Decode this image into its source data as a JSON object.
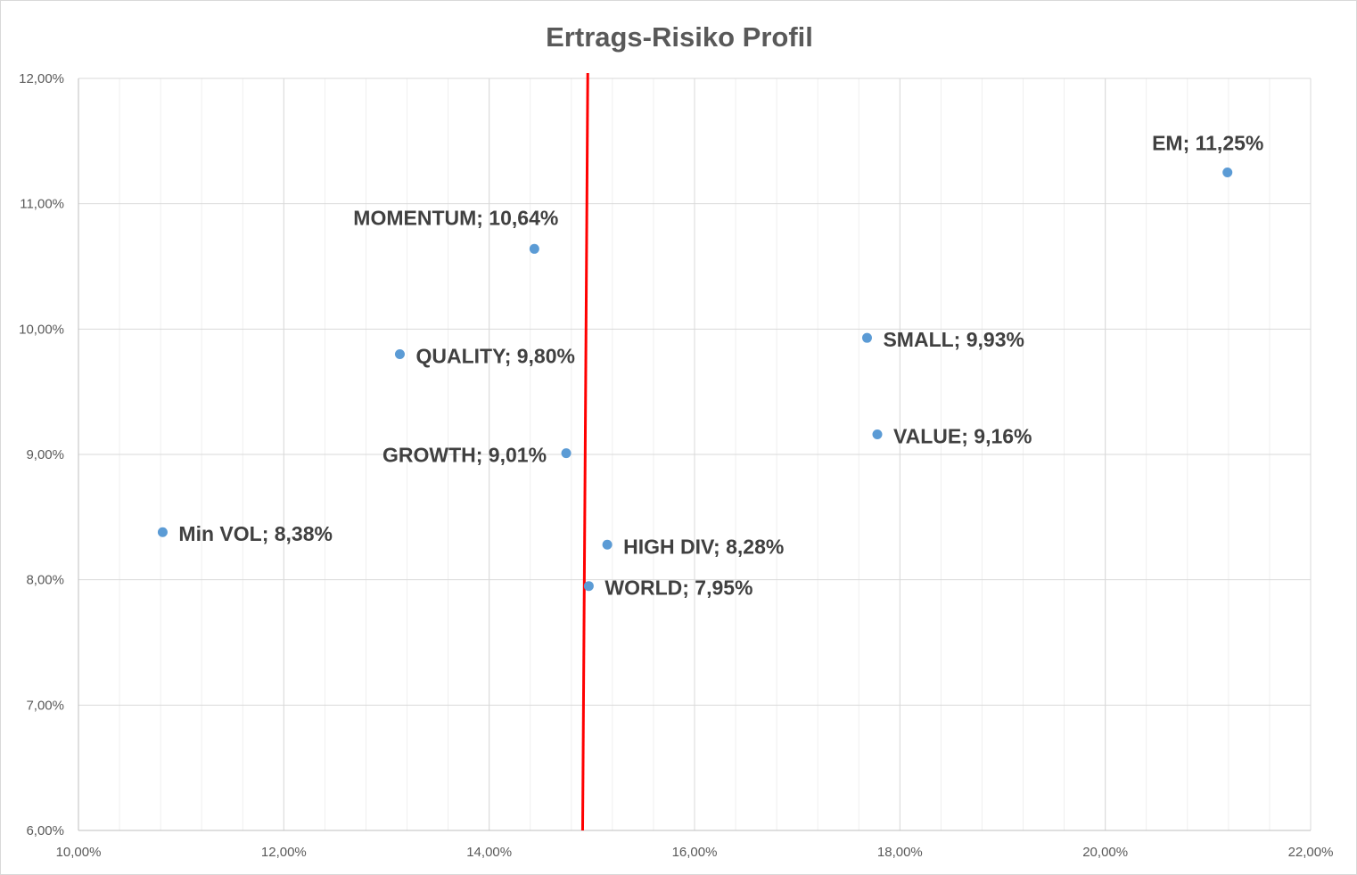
{
  "chart_data": {
    "type": "scatter",
    "title": "Ertrags-Risiko Profil",
    "xlabel": "",
    "ylabel": "",
    "xlim": [
      10,
      22
    ],
    "ylim": [
      6,
      12
    ],
    "x_major_step": 2,
    "x_minor_step": 0.4,
    "y_major_step": 1,
    "grid": true,
    "x_tick_labels": [
      "10,00%",
      "12,00%",
      "14,00%",
      "16,00%",
      "18,00%",
      "20,00%",
      "22,00%"
    ],
    "y_tick_labels": [
      "6,00%",
      "7,00%",
      "8,00%",
      "9,00%",
      "10,00%",
      "11,00%",
      "12,00%"
    ],
    "marker_color": "#5b9bd5",
    "points": [
      {
        "name": "EM",
        "x": 21.19,
        "y": 11.25,
        "label": "EM; 11,25%",
        "label_position": "above"
      },
      {
        "name": "MOMENTUM",
        "x": 14.44,
        "y": 10.64,
        "label": "MOMENTUM; 10,64%",
        "label_position": "above-left"
      },
      {
        "name": "SMALL",
        "x": 17.68,
        "y": 9.93,
        "label": "SMALL; 9,93%",
        "label_position": "right"
      },
      {
        "name": "QUALITY",
        "x": 13.13,
        "y": 9.8,
        "label": "QUALITY; 9,80%",
        "label_position": "right"
      },
      {
        "name": "VALUE",
        "x": 17.78,
        "y": 9.16,
        "label": "VALUE; 9,16%",
        "label_position": "right"
      },
      {
        "name": "GROWTH",
        "x": 14.75,
        "y": 9.01,
        "label": "GROWTH; 9,01%",
        "label_position": "left"
      },
      {
        "name": "Min VOL",
        "x": 10.82,
        "y": 8.38,
        "label": "Min VOL; 8,38%",
        "label_position": "right"
      },
      {
        "name": "HIGH DIV",
        "x": 15.15,
        "y": 8.28,
        "label": "HIGH DIV; 8,28%",
        "label_position": "right"
      },
      {
        "name": "WORLD",
        "x": 14.97,
        "y": 7.95,
        "label": "WORLD; 7,95%",
        "label_position": "right"
      }
    ],
    "reference_line": {
      "color": "#ff0000",
      "points": [
        [
          14.91,
          6
        ],
        [
          14.96,
          12
        ]
      ]
    }
  }
}
